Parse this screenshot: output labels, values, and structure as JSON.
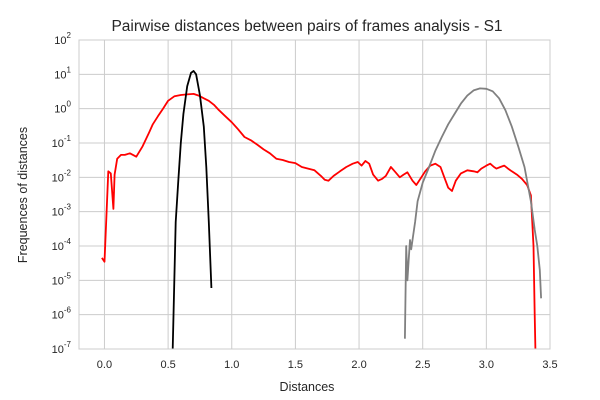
{
  "chart_data": {
    "type": "line",
    "title": "Pairwise distances between pairs of frames analysis - S1",
    "xlabel": "Distances",
    "ylabel": "Frequences of distances",
    "xlim": [
      -0.2,
      3.5
    ],
    "ylim": [
      1e-07,
      100
    ],
    "yscale": "log",
    "grid": true,
    "background": "#ffffff",
    "grid_color": "#cccccc",
    "x_ticks": [
      {
        "value": 0.0,
        "label": "0.0"
      },
      {
        "value": 0.5,
        "label": "0.5"
      },
      {
        "value": 1.0,
        "label": "1.0"
      },
      {
        "value": 1.5,
        "label": "1.5"
      },
      {
        "value": 2.0,
        "label": "2.0"
      },
      {
        "value": 2.5,
        "label": "2.5"
      },
      {
        "value": 3.0,
        "label": "3.0"
      },
      {
        "value": 3.5,
        "label": "3.5"
      }
    ],
    "y_ticks": [
      {
        "value": 1e-07,
        "base": "10",
        "exp": "-7"
      },
      {
        "value": 1e-06,
        "base": "10",
        "exp": "-6"
      },
      {
        "value": 1e-05,
        "base": "10",
        "exp": "-5"
      },
      {
        "value": 0.0001,
        "base": "10",
        "exp": "-4"
      },
      {
        "value": 0.001,
        "base": "10",
        "exp": "-3"
      },
      {
        "value": 0.01,
        "base": "10",
        "exp": "-2"
      },
      {
        "value": 0.1,
        "base": "10",
        "exp": "-1"
      },
      {
        "value": 1,
        "base": "10",
        "exp": "0"
      },
      {
        "value": 10,
        "base": "10",
        "exp": "1"
      },
      {
        "value": 100,
        "base": "10",
        "exp": "2"
      }
    ],
    "series": [
      {
        "color": "#ff0000",
        "x": [
          -0.02,
          0.0,
          0.03,
          0.05,
          0.07,
          0.08,
          0.1,
          0.13,
          0.16,
          0.2,
          0.25,
          0.3,
          0.35,
          0.38,
          0.42,
          0.46,
          0.5,
          0.55,
          0.6,
          0.65,
          0.7,
          0.74,
          0.78,
          0.82,
          0.86,
          0.9,
          0.95,
          1.0,
          1.05,
          1.1,
          1.15,
          1.2,
          1.25,
          1.3,
          1.35,
          1.4,
          1.45,
          1.5,
          1.55,
          1.6,
          1.65,
          1.7,
          1.73,
          1.76,
          1.8,
          1.85,
          1.9,
          1.95,
          1.99,
          2.02,
          2.05,
          2.08,
          2.11,
          2.15,
          2.18,
          2.21,
          2.25,
          2.28,
          2.32,
          2.35,
          2.38,
          2.42,
          2.45,
          2.49,
          2.52,
          2.56,
          2.6,
          2.64,
          2.67,
          2.7,
          2.73,
          2.76,
          2.8,
          2.85,
          2.9,
          2.93,
          2.96,
          3.0,
          3.03,
          3.06,
          3.08,
          3.11,
          3.14,
          3.17,
          3.2,
          3.24,
          3.28,
          3.32,
          3.35,
          3.37,
          3.38,
          3.385,
          3.39
        ],
        "y": [
          4.5e-05,
          3.5e-05,
          0.015,
          0.013,
          0.0012,
          0.012,
          0.035,
          0.045,
          0.045,
          0.05,
          0.04,
          0.08,
          0.2,
          0.35,
          0.6,
          1.0,
          1.7,
          2.3,
          2.5,
          2.6,
          2.7,
          2.4,
          2.0,
          1.7,
          1.3,
          0.9,
          0.6,
          0.4,
          0.25,
          0.15,
          0.12,
          0.09,
          0.065,
          0.05,
          0.035,
          0.032,
          0.028,
          0.026,
          0.02,
          0.018,
          0.016,
          0.011,
          0.0085,
          0.008,
          0.011,
          0.015,
          0.02,
          0.025,
          0.028,
          0.022,
          0.03,
          0.025,
          0.012,
          0.008,
          0.009,
          0.011,
          0.02,
          0.015,
          0.01,
          0.012,
          0.014,
          0.008,
          0.006,
          0.01,
          0.015,
          0.022,
          0.025,
          0.02,
          0.01,
          0.005,
          0.004,
          0.008,
          0.013,
          0.016,
          0.015,
          0.014,
          0.018,
          0.022,
          0.025,
          0.02,
          0.018,
          0.02,
          0.022,
          0.018,
          0.015,
          0.012,
          0.009,
          0.006,
          0.003,
          0.0001,
          1e-06,
          1e-07,
          1e-08
        ]
      },
      {
        "color": "#000000",
        "x": [
          0.53,
          0.56,
          0.58,
          0.6,
          0.62,
          0.65,
          0.68,
          0.7,
          0.72,
          0.75,
          0.78,
          0.8,
          0.82,
          0.84
        ],
        "y": [
          1e-08,
          0.0005,
          0.008,
          0.1,
          0.7,
          4.5,
          11.0,
          12.5,
          10.0,
          2.5,
          0.3,
          0.02,
          0.0005,
          6e-06
        ]
      },
      {
        "color": "#808080",
        "x": [
          2.36,
          2.37,
          2.38,
          2.39,
          2.4,
          2.41,
          2.42,
          2.44,
          2.46,
          2.5,
          2.55,
          2.6,
          2.65,
          2.7,
          2.75,
          2.8,
          2.85,
          2.9,
          2.95,
          3.0,
          3.05,
          3.1,
          3.15,
          3.2,
          3.25,
          3.3,
          3.35,
          3.38,
          3.4,
          3.42,
          3.43
        ],
        "y": [
          2e-07,
          0.0001,
          1e-05,
          4e-05,
          0.00015,
          8e-05,
          0.00015,
          0.0005,
          0.002,
          0.007,
          0.02,
          0.06,
          0.15,
          0.35,
          0.7,
          1.4,
          2.4,
          3.4,
          3.9,
          3.8,
          3.2,
          2.0,
          0.9,
          0.3,
          0.08,
          0.02,
          0.002,
          0.0003,
          0.0001,
          2e-05,
          3e-06
        ]
      }
    ]
  }
}
